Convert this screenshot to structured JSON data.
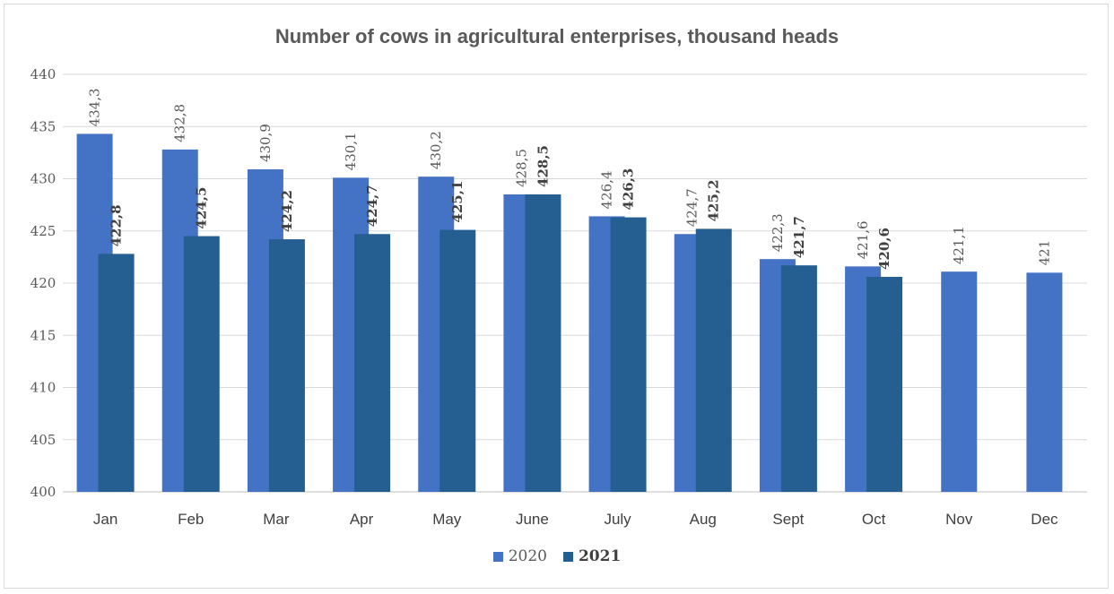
{
  "chart_data": {
    "type": "bar",
    "title": "Number of cows in agricultural enterprises, thousand heads",
    "categories": [
      "Jan",
      "Feb",
      "Mar",
      "Apr",
      "May",
      "June",
      "July",
      "Aug",
      "Sept",
      "Oct",
      "Nov",
      "Dec"
    ],
    "series": [
      {
        "name": "2020",
        "color": "#4472C4",
        "values": [
          434.3,
          432.8,
          430.9,
          430.1,
          430.2,
          428.5,
          426.4,
          424.7,
          422.3,
          421.6,
          421.1,
          421
        ],
        "labels": [
          "434,3",
          "432,8",
          "430,9",
          "430,1",
          "430,2",
          "428,5",
          "426,4",
          "424,7",
          "422,3",
          "421,6",
          "421,1",
          "421"
        ]
      },
      {
        "name": "2021",
        "color": "#255E91",
        "values": [
          422.8,
          424.5,
          424.2,
          424.7,
          425.1,
          428.5,
          426.3,
          425.2,
          421.7,
          420.6,
          null,
          null
        ],
        "labels": [
          "422,8",
          "424,5",
          "424,2",
          "424,7",
          "425,1",
          "428,5",
          "426,3",
          "425,2",
          "421,7",
          "420,6",
          "",
          ""
        ]
      }
    ],
    "ylim": [
      400,
      440
    ],
    "yticks": [
      400,
      405,
      410,
      415,
      420,
      425,
      430,
      435,
      440
    ],
    "xlabel": "",
    "ylabel": "",
    "grid": true,
    "legend_position": "bottom"
  }
}
